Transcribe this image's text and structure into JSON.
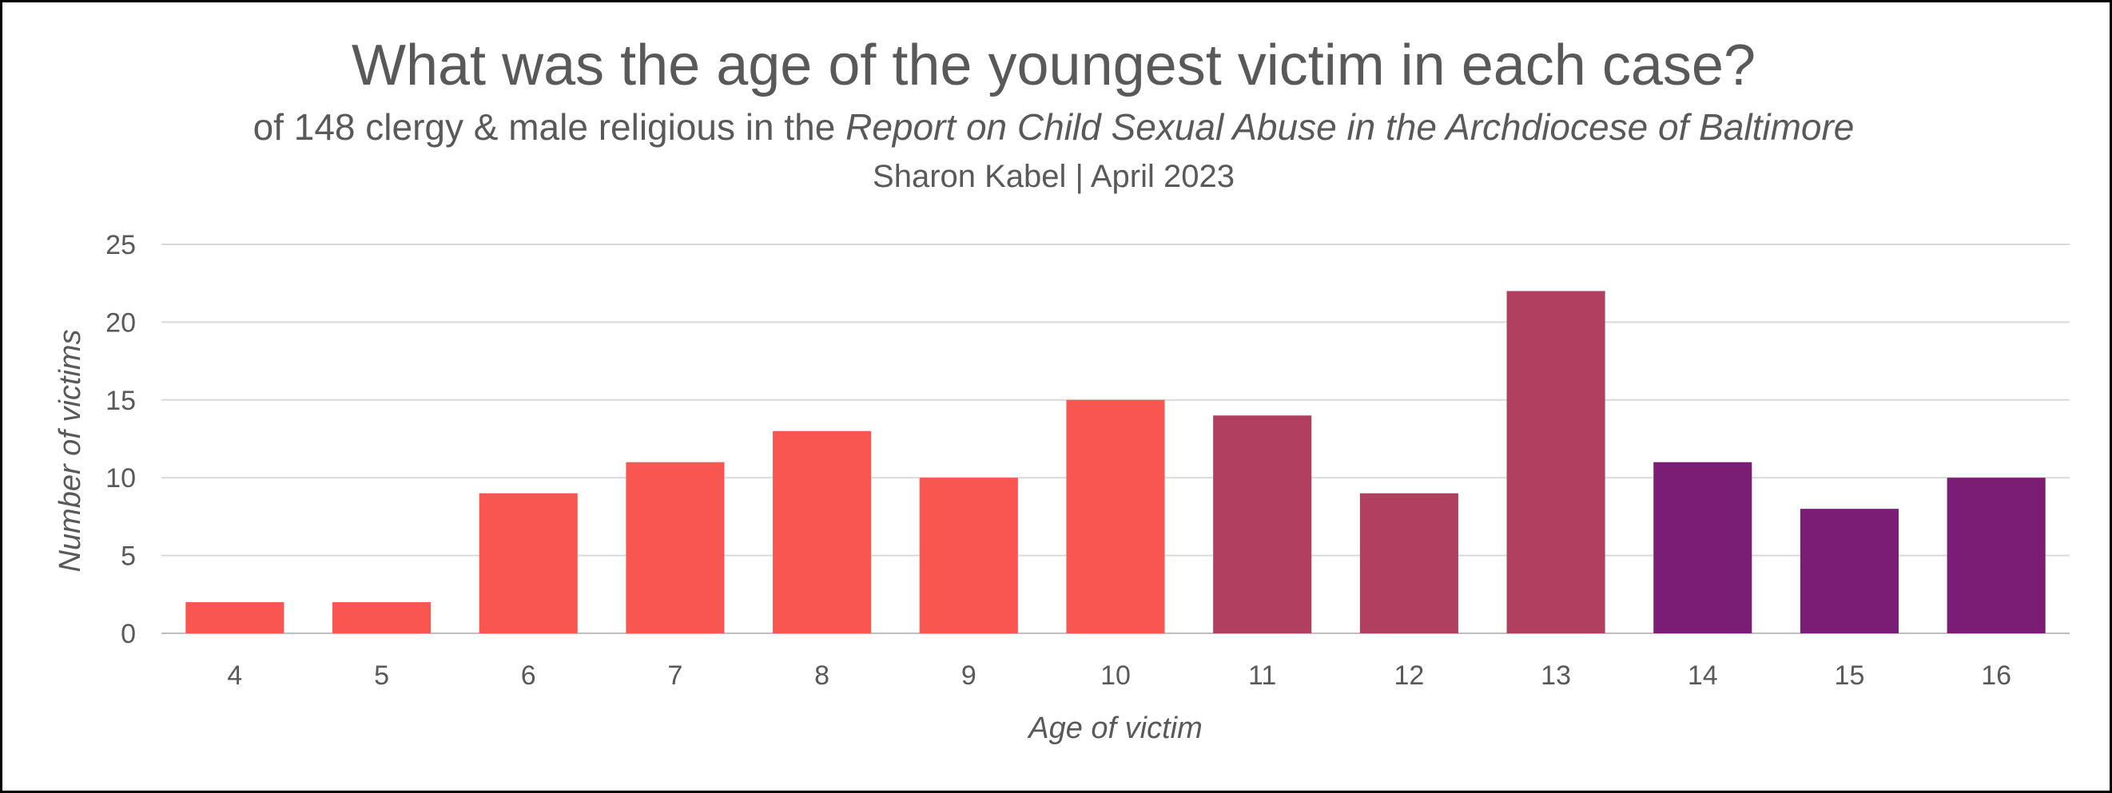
{
  "title": "What was the age of the youngest victim in each case?",
  "subtitle_prefix": "of 148 clergy & male religious in the ",
  "subtitle_italic": "Report on Child Sexual Abuse in the Archdiocese of Baltimore",
  "byline": "Sharon Kabel | April 2023",
  "chart_data": {
    "type": "bar",
    "title": "What was the age of the youngest victim in each case?",
    "xlabel": "Age of victim",
    "ylabel": "Number of victims",
    "ylim": [
      0,
      25
    ],
    "yticks": [
      0,
      5,
      10,
      15,
      20,
      25
    ],
    "grid": true,
    "categories": [
      "4",
      "5",
      "6",
      "7",
      "8",
      "9",
      "10",
      "11",
      "12",
      "13",
      "14",
      "15",
      "16"
    ],
    "values": [
      2,
      2,
      9,
      11,
      13,
      10,
      15,
      14,
      9,
      22,
      11,
      8,
      10
    ],
    "colors": [
      "#F95651",
      "#F95651",
      "#F95651",
      "#F95651",
      "#F95651",
      "#F95651",
      "#F95651",
      "#B03F60",
      "#B03F60",
      "#B03F60",
      "#7B1C75",
      "#7B1C75",
      "#7B1C75"
    ]
  },
  "colors": {
    "text": "#595959",
    "grid": "#d9d9d9",
    "axis": "#bfbfbf",
    "border": "#000000"
  }
}
